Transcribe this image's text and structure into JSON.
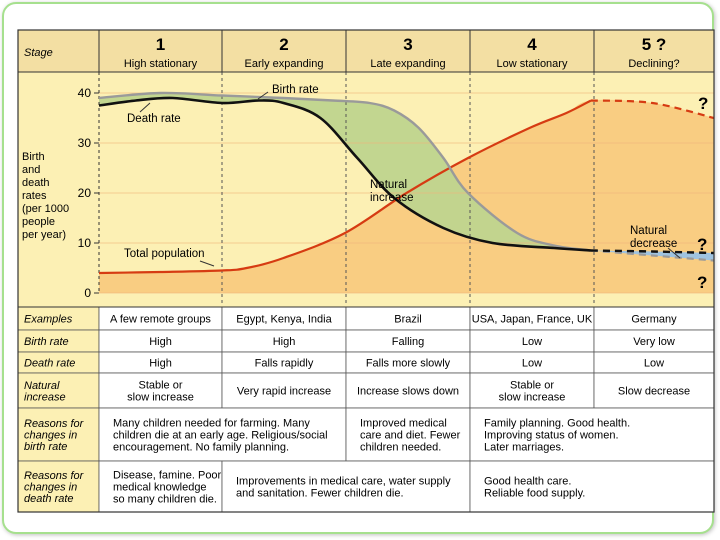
{
  "stage_header": "Stage",
  "stages": [
    {
      "number": "1",
      "label": "High stationary"
    },
    {
      "number": "2",
      "label": "Early expanding"
    },
    {
      "number": "3",
      "label": "Late expanding"
    },
    {
      "number": "4",
      "label": "Low stationary"
    },
    {
      "number": "5 ?",
      "label": "Declining?"
    }
  ],
  "y_axis_label": [
    "Birth",
    "and",
    "death",
    "rates",
    "(per 1000",
    "people",
    "per year)"
  ],
  "y_ticks": [
    "0",
    "10",
    "20",
    "30",
    "40"
  ],
  "annotations": {
    "birth_rate": "Birth rate",
    "death_rate": "Death rate",
    "total_population": "Total population",
    "natural_increase": [
      "Natural",
      "increase"
    ],
    "natural_decrease": [
      "Natural",
      "decrease"
    ],
    "question": "?"
  },
  "colors": {
    "background_band": "#fcf0b4",
    "natural_increase_fill": "#bfd48e",
    "population_fill": "#f8c97c",
    "decrease_fill": "#9fc3e0",
    "birth_line": "#9a9a9a",
    "death_line": "#111111",
    "population_line": "#d63b12",
    "grid_line": "#f2b37a"
  },
  "chart_data": {
    "type": "line",
    "x_stages": [
      1,
      2,
      3,
      4,
      5
    ],
    "ylabel": "Birth and death rates (per 1000 people per year)",
    "ylim": [
      0,
      40
    ],
    "series": [
      {
        "name": "Birth rate",
        "x": [
          0,
          0.5,
          1.0,
          1.5,
          1.9,
          2.2,
          2.4,
          2.6,
          2.8,
          3.0,
          3.4,
          3.7,
          4.0,
          4.5,
          5.0
        ],
        "y": [
          39,
          40,
          39.5,
          39,
          38.5,
          38,
          36.5,
          33,
          27,
          20,
          12,
          9.5,
          8.5,
          7.5,
          6.5
        ]
      },
      {
        "name": "Death rate",
        "x": [
          0,
          0.3,
          0.6,
          1.0,
          1.3,
          1.5,
          1.8,
          2.1,
          2.4,
          2.8,
          3.2,
          3.7,
          4.0,
          4.5,
          5.0
        ],
        "y": [
          37.5,
          38.5,
          39,
          38,
          38.5,
          38,
          35,
          27,
          19,
          13,
          10,
          9,
          8.5,
          8.3,
          8
        ]
      },
      {
        "name": "Total population",
        "x": [
          0,
          0.5,
          1.0,
          1.2,
          1.5,
          2.0,
          2.5,
          3.0,
          3.5,
          3.8,
          4.0,
          4.5,
          5.0
        ],
        "y": [
          4,
          4.2,
          4.5,
          5,
          7,
          12,
          20,
          27,
          33,
          36,
          38.5,
          38,
          35
        ]
      }
    ]
  },
  "table_rows": [
    {
      "label": [
        "Examples"
      ],
      "cells": [
        {
          "span": 1,
          "lines": [
            "A few remote groups"
          ]
        },
        {
          "span": 1,
          "lines": [
            "Egypt, Kenya, India"
          ]
        },
        {
          "span": 1,
          "lines": [
            "Brazil"
          ]
        },
        {
          "span": 1,
          "lines": [
            "USA, Japan, France, UK"
          ]
        },
        {
          "span": 1,
          "lines": [
            "Germany"
          ]
        }
      ]
    },
    {
      "label": [
        "Birth rate"
      ],
      "cells": [
        {
          "span": 1,
          "lines": [
            "High"
          ]
        },
        {
          "span": 1,
          "lines": [
            "High"
          ]
        },
        {
          "span": 1,
          "lines": [
            "Falling"
          ]
        },
        {
          "span": 1,
          "lines": [
            "Low"
          ]
        },
        {
          "span": 1,
          "lines": [
            "Very low"
          ]
        }
      ]
    },
    {
      "label": [
        "Death rate"
      ],
      "cells": [
        {
          "span": 1,
          "lines": [
            "High"
          ]
        },
        {
          "span": 1,
          "lines": [
            "Falls rapidly"
          ]
        },
        {
          "span": 1,
          "lines": [
            "Falls more slowly"
          ]
        },
        {
          "span": 1,
          "lines": [
            "Low"
          ]
        },
        {
          "span": 1,
          "lines": [
            "Low"
          ]
        }
      ]
    },
    {
      "label": [
        "Natural",
        "increase"
      ],
      "cells": [
        {
          "span": 1,
          "lines": [
            "Stable or",
            "slow increase"
          ]
        },
        {
          "span": 1,
          "lines": [
            "Very rapid increase"
          ]
        },
        {
          "span": 1,
          "lines": [
            "Increase slows down"
          ]
        },
        {
          "span": 1,
          "lines": [
            "Stable or",
            "slow increase"
          ]
        },
        {
          "span": 1,
          "lines": [
            "Slow decrease"
          ]
        }
      ]
    },
    {
      "label": [
        "Reasons for",
        "changes in",
        "birth rate"
      ],
      "cells": [
        {
          "span": 2,
          "lines": [
            "Many children needed for farming. Many",
            "children die at an early age. Religious/social",
            "encouragement. No family planning."
          ]
        },
        {
          "span": 1,
          "lines": [
            "Improved medical",
            "care and diet. Fewer",
            "children needed."
          ]
        },
        {
          "span": 2,
          "lines": [
            "Family planning. Good health.",
            "Improving status of women.",
            "Later marriages."
          ]
        }
      ]
    },
    {
      "label": [
        "Reasons for",
        "changes in",
        "death rate"
      ],
      "cells": [
        {
          "span": 1,
          "lines": [
            "Disease, famine. Poor",
            "medical knowledge",
            "so many children die."
          ]
        },
        {
          "span": 2,
          "lines": [
            "Improvements in medical care, water supply",
            "and sanitation. Fewer children die."
          ]
        },
        {
          "span": 2,
          "lines": [
            "Good health care.",
            "Reliable food supply."
          ]
        }
      ]
    }
  ]
}
